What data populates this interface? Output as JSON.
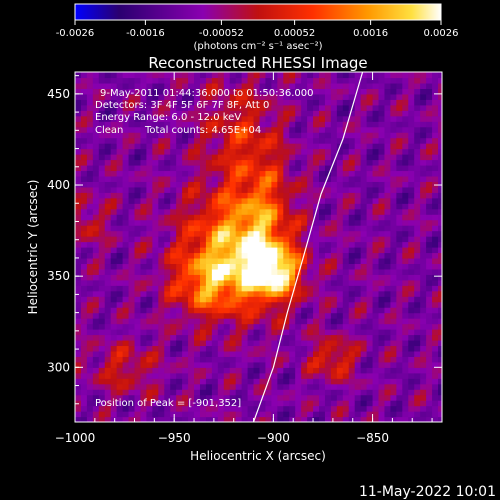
{
  "chart_data": {
    "type": "heatmap",
    "title": "Reconstructed RHESSI Image",
    "xlabel": "Heliocentric X (arcsec)",
    "ylabel": "Heliocentric Y (arcsec)",
    "xlim": [
      -1000,
      -815
    ],
    "ylim": [
      270,
      462
    ],
    "xticks": [
      -1000,
      -950,
      -900,
      -850
    ],
    "yticks": [
      300,
      350,
      400,
      450
    ],
    "colorbar": {
      "range": [
        -0.0026,
        0.0026
      ],
      "ticks": [
        "-0.0026",
        "-0.0016",
        "-0.00052",
        "0.00052",
        "0.0016",
        "0.0026"
      ],
      "tick_values": [
        -0.0026,
        -0.0016,
        -0.00052,
        0.00052,
        0.0016,
        0.0026
      ],
      "unit_label": "(photons cm⁻² s⁻¹ asec⁻²)",
      "colors": [
        "#0000ff",
        "#2a0070",
        "#8a00b0",
        "#c01010",
        "#ff3000",
        "#ff9800",
        "#ffe040",
        "#ffffff"
      ]
    },
    "annotations": {
      "time_range": "9-May-2011 01:44:36.000 to 01:50:36.000",
      "detectors": "Detectors: 3F 4F 5F 6F 7F 8F, Att 0",
      "energy": "Energy Range: 6.0 - 12.0 keV",
      "clean_label": "Clean",
      "total_counts": "Total counts: 4.65E+04",
      "peak": "Position of Peak = [-901,352]"
    },
    "peak": [
      -901,
      352
    ],
    "limb_curve": [
      [
        -910,
        270
      ],
      [
        -900,
        300
      ],
      [
        -893,
        330
      ],
      [
        -885,
        360
      ],
      [
        -876,
        395
      ],
      [
        -865,
        425
      ],
      [
        -855,
        462
      ]
    ],
    "sources": [
      {
        "x": -920,
        "y": 365,
        "amp": 0.0026,
        "sx": 18,
        "sy": 22
      },
      {
        "x": -900,
        "y": 352,
        "amp": 0.0026,
        "sx": 10,
        "sy": 10
      },
      {
        "x": -935,
        "y": 345,
        "amp": 0.0014,
        "sx": 12,
        "sy": 12
      },
      {
        "x": -905,
        "y": 390,
        "amp": 0.0012,
        "sx": 10,
        "sy": 30
      },
      {
        "x": -870,
        "y": 305,
        "amp": 0.0014,
        "sx": 8,
        "sy": 8
      },
      {
        "x": -920,
        "y": 430,
        "amp": 0.001,
        "sx": 12,
        "sy": 20
      },
      {
        "x": -975,
        "y": 300,
        "amp": 0.001,
        "sx": 12,
        "sy": 10
      },
      {
        "x": -995,
        "y": 380,
        "amp": 0.0009,
        "sx": 8,
        "sy": 10
      }
    ]
  },
  "footer": {
    "date": "11-May-2022 10:01"
  }
}
